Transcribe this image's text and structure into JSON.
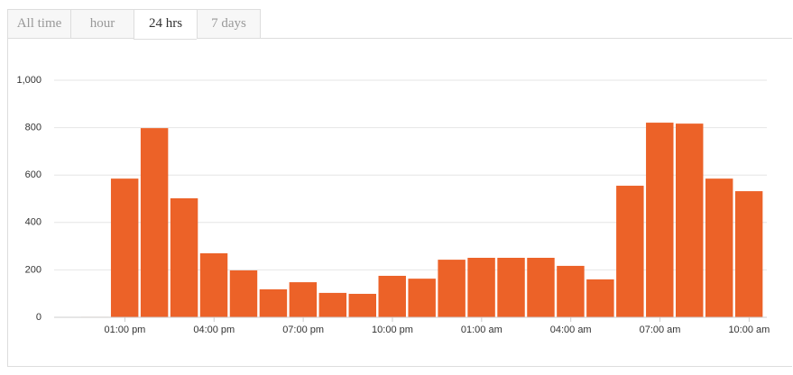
{
  "tabs": {
    "items": [
      "All time",
      "hour",
      "24 hrs",
      "7 days"
    ],
    "active": 2
  },
  "chart_data": {
    "type": "bar",
    "categories": [
      null,
      "01:00 pm",
      null,
      null,
      "04:00 pm",
      null,
      null,
      "07:00 pm",
      null,
      null,
      "10:00 pm",
      null,
      null,
      "01:00 am",
      null,
      null,
      "04:00 am",
      null,
      null,
      "07:00 am",
      null,
      null,
      "10:00 am"
    ],
    "values": [
      2,
      585,
      798,
      502,
      270,
      198,
      118,
      148,
      103,
      99,
      175,
      163,
      243,
      251,
      251,
      251,
      217,
      160,
      555,
      821,
      817,
      585,
      532
    ],
    "color": "#ec6228",
    "ylim": [
      0,
      1000
    ],
    "yticks": [
      0,
      200,
      400,
      600,
      800,
      {
        "value": 1000,
        "label": "1,000"
      }
    ],
    "grid": true
  }
}
